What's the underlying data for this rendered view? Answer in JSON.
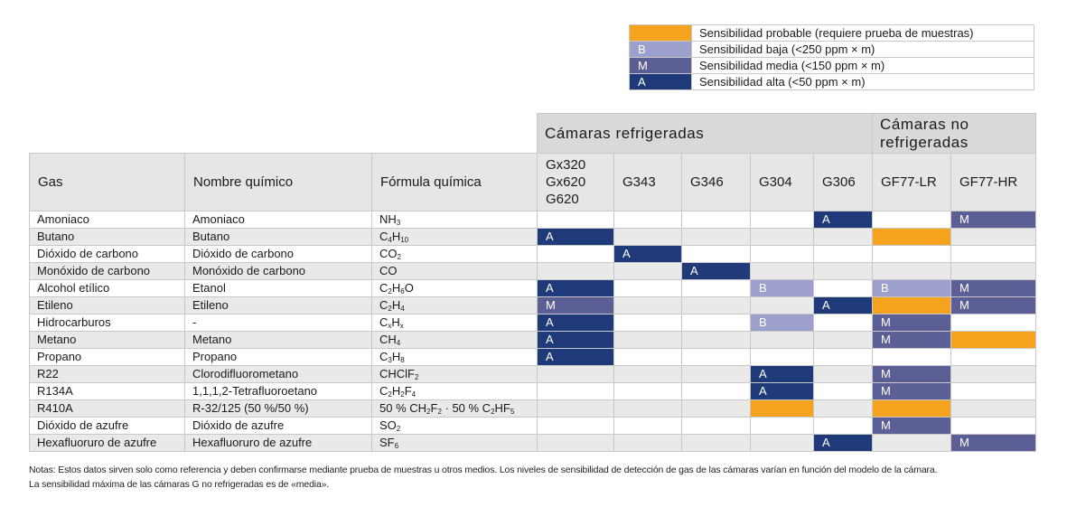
{
  "colors": {
    "A": "#1f3a78",
    "M": "#5c5f96",
    "B": "#9d9fcc",
    "P": "#f5a21f"
  },
  "legend": [
    {
      "code": "P",
      "mark": "",
      "text": "Sensibilidad probable (requiere prueba de muestras)"
    },
    {
      "code": "B",
      "mark": "B",
      "text": "Sensibilidad baja (<250 ppm × m)"
    },
    {
      "code": "M",
      "mark": "M",
      "text": "Sensibilidad media (<150 ppm × m)"
    },
    {
      "code": "A",
      "mark": "A",
      "text": "Sensibilidad alta (<50 ppm × m)"
    }
  ],
  "groups": {
    "refrigerated": "Cámaras refrigeradas",
    "non_refrigerated_line1": "Cámaras no",
    "non_refrigerated_line2": "refrigeradas"
  },
  "headers": {
    "gas": "Gas",
    "chem": "Nombre químico",
    "formula": "Fórmula química",
    "cameras": [
      [
        "Gx320",
        "Gx620",
        "G620"
      ],
      [
        "G343"
      ],
      [
        "G346"
      ],
      [
        "G304"
      ],
      [
        "G306"
      ],
      [
        "GF77-LR"
      ],
      [
        "GF77-HR"
      ]
    ]
  },
  "rows": [
    {
      "gas": "Amoniaco",
      "chem": "Amoniaco",
      "formula": [
        [
          "NH",
          ""
        ],
        [
          "3",
          "s"
        ]
      ],
      "cells": [
        "",
        "",
        "",
        "",
        "A",
        "",
        "M"
      ]
    },
    {
      "gas": "Butano",
      "chem": "Butano",
      "formula": [
        [
          "C",
          ""
        ],
        [
          "4",
          "s"
        ],
        [
          "H",
          ""
        ],
        [
          "10",
          "s"
        ]
      ],
      "cells": [
        "A",
        "",
        "",
        "",
        "",
        "P",
        ""
      ]
    },
    {
      "gas": "Dióxido de carbono",
      "chem": "Dióxido de carbono",
      "formula": [
        [
          "CO",
          ""
        ],
        [
          "2",
          "s"
        ]
      ],
      "cells": [
        "",
        "A",
        "",
        "",
        "",
        "",
        ""
      ]
    },
    {
      "gas": "Monóxido de carbono",
      "chem": "Monóxido de carbono",
      "formula": [
        [
          "CO",
          ""
        ]
      ],
      "cells": [
        "",
        "",
        "A",
        "",
        "",
        "",
        ""
      ]
    },
    {
      "gas": "Alcohol etílico",
      "chem": "Etanol",
      "formula": [
        [
          "C",
          ""
        ],
        [
          "2",
          "s"
        ],
        [
          "H",
          ""
        ],
        [
          "6",
          "s"
        ],
        [
          "O",
          ""
        ]
      ],
      "cells": [
        "A",
        "",
        "",
        "B",
        "",
        "B",
        "M"
      ]
    },
    {
      "gas": "Etileno",
      "chem": "Etileno",
      "formula": [
        [
          "C",
          ""
        ],
        [
          "2",
          "s"
        ],
        [
          "H",
          ""
        ],
        [
          "4",
          "s"
        ]
      ],
      "cells": [
        "M",
        "",
        "",
        "",
        "A",
        "P",
        "M"
      ]
    },
    {
      "gas": "Hidrocarburos",
      "chem": "-",
      "formula": [
        [
          "C",
          ""
        ],
        [
          "x",
          "s"
        ],
        [
          "H",
          ""
        ],
        [
          "x",
          "s"
        ]
      ],
      "cells": [
        "A",
        "",
        "",
        "B",
        "",
        "M",
        ""
      ]
    },
    {
      "gas": "Metano",
      "chem": "Metano",
      "formula": [
        [
          "CH",
          ""
        ],
        [
          "4",
          "s"
        ]
      ],
      "cells": [
        "A",
        "",
        "",
        "",
        "",
        "M",
        "P"
      ]
    },
    {
      "gas": "Propano",
      "chem": "Propano",
      "formula": [
        [
          "C",
          ""
        ],
        [
          "3",
          "s"
        ],
        [
          "H",
          ""
        ],
        [
          "8",
          "s"
        ]
      ],
      "cells": [
        "A",
        "",
        "",
        "",
        "",
        "",
        ""
      ]
    },
    {
      "gas": "R22",
      "chem": "Clorodifluorometano",
      "formula": [
        [
          "CHClF",
          ""
        ],
        [
          "2",
          "s"
        ]
      ],
      "cells": [
        "",
        "",
        "",
        "A",
        "",
        "M",
        ""
      ]
    },
    {
      "gas": "R134A",
      "chem": "1,1,1,2-Tetrafluoroetano",
      "formula": [
        [
          "C",
          ""
        ],
        [
          "2",
          "s"
        ],
        [
          "H",
          ""
        ],
        [
          "2",
          "s"
        ],
        [
          "F",
          ""
        ],
        [
          "4",
          "s"
        ]
      ],
      "cells": [
        "",
        "",
        "",
        "A",
        "",
        "M",
        ""
      ]
    },
    {
      "gas": "R410A",
      "chem": "R-32/125 (50 %/50 %)",
      "formula": [
        [
          "50 % CH",
          ""
        ],
        [
          "2",
          "s"
        ],
        [
          "F",
          ""
        ],
        [
          "2",
          "s"
        ],
        [
          " · 50 % C",
          ""
        ],
        [
          "2",
          "s"
        ],
        [
          "HF",
          ""
        ],
        [
          "5",
          "s"
        ]
      ],
      "cells": [
        "",
        "",
        "",
        "P",
        "",
        "P",
        ""
      ]
    },
    {
      "gas": "Dióxido de azufre",
      "chem": "Dióxido de azufre",
      "formula": [
        [
          "SO",
          ""
        ],
        [
          "2",
          "s"
        ]
      ],
      "cells": [
        "",
        "",
        "",
        "",
        "",
        "M",
        ""
      ]
    },
    {
      "gas": "Hexafluoruro de azufre",
      "chem": "Hexafluoruro de azufre",
      "formula": [
        [
          "SF",
          ""
        ],
        [
          "6",
          "s"
        ]
      ],
      "cells": [
        "",
        "",
        "",
        "",
        "A",
        "",
        "M"
      ]
    }
  ],
  "notes": [
    "Notas: Estos datos sirven solo como referencia y deben confirmarse mediante prueba de muestras u otros medios. Los niveles de sensibilidad de detección de gas de las cámaras varían en función del modelo de la cámara.",
    "La sensibilidad máxima de las cámaras G no refrigeradas es de «media»."
  ]
}
